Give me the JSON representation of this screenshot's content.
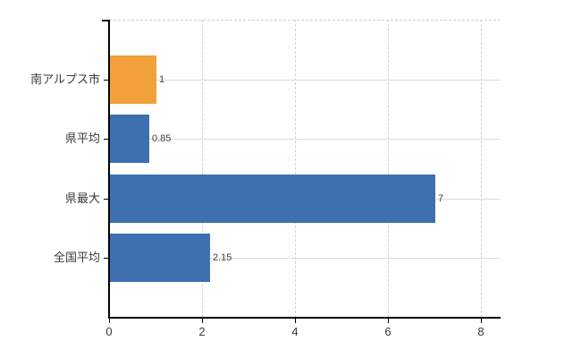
{
  "chart_data": {
    "type": "bar",
    "orientation": "horizontal",
    "title": "",
    "xlabel": "",
    "ylabel": "",
    "categories": [
      "南アルプス市",
      "県平均",
      "県最大",
      "全国平均"
    ],
    "values": [
      1,
      0.85,
      7,
      2.15
    ],
    "value_labels": [
      "1",
      "0.85",
      "7",
      "2.15"
    ],
    "bar_colors": [
      "#f1a03a",
      "#3e6fb0",
      "#3e6fb0",
      "#3e6fb0"
    ],
    "xlim": [
      0,
      8
    ],
    "x_ticks": [
      0,
      2,
      4,
      6,
      8
    ],
    "x_tick_labels": [
      "0",
      "2",
      "4",
      "6",
      "8"
    ],
    "legend": "none",
    "grid": {
      "vertical_style": "dashed",
      "horizontal_style": "solid",
      "vertical_color": "#d4d4d4",
      "horizontal_color": "#d9dcd9",
      "top_border_color": "#cfcfcf"
    },
    "axis_color": "#000000",
    "label_color": "#3a3a3a",
    "value_label_color": "#404040",
    "background": "#ffffff"
  }
}
